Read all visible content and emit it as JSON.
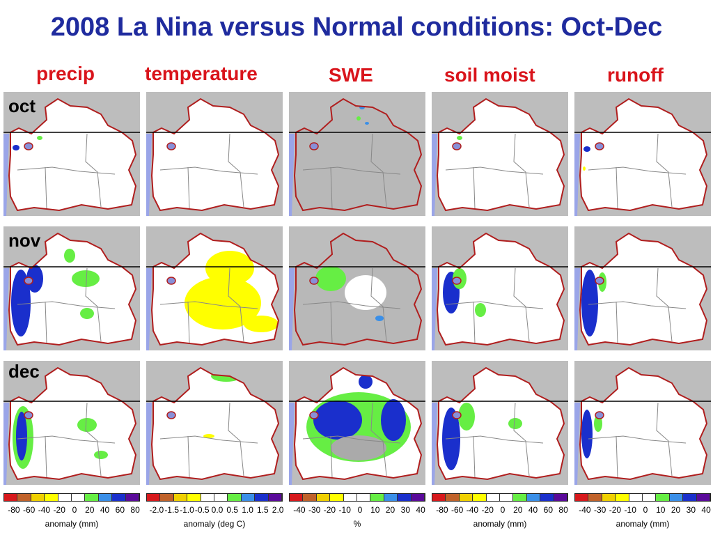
{
  "title": "2008 La Nina versus Normal conditions:  Oct-Dec",
  "columns": [
    "precip",
    "temperature",
    "SWE",
    "soil moist",
    "runoff"
  ],
  "rows": [
    "oct",
    "nov",
    "dec"
  ],
  "colorbars": [
    {
      "ticks": [
        "-80",
        "-60",
        "-40",
        "-20",
        "0",
        "20",
        "40",
        "60",
        "80"
      ],
      "unit": "anomaly (mm)"
    },
    {
      "ticks": [
        "-2.0",
        "-1.5",
        "-1.0",
        "-0.5",
        "0.0",
        "0.5",
        "1.0",
        "1.5",
        "2.0"
      ],
      "unit": "anomaly (deg C)"
    },
    {
      "ticks": [
        "-40",
        "-30",
        "-20",
        "-10",
        "0",
        "10",
        "20",
        "30",
        "40"
      ],
      "unit": "%"
    },
    {
      "ticks": [
        "-80",
        "-60",
        "-40",
        "-20",
        "0",
        "20",
        "40",
        "60",
        "80"
      ],
      "unit": "anomaly (mm)"
    },
    {
      "ticks": [
        "-40",
        "-30",
        "-20",
        "-10",
        "0",
        "10",
        "20",
        "30",
        "40"
      ],
      "unit": "anomaly (mm)"
    }
  ],
  "colors": {
    "title": "#1f2b9e",
    "column_header": "#d9141b",
    "basin_border": "#b01e1e",
    "outside": "#bdbdbd",
    "basin_fill": "#ffffff",
    "ocean": "#9aa5e8",
    "scale": [
      "#d7191c",
      "#c0622a",
      "#f0d000",
      "#ffff00",
      "#ffffff",
      "#ffffff",
      "#66ee44",
      "#3a8fe8",
      "#1a2fcc",
      "#5a0a9a"
    ]
  }
}
